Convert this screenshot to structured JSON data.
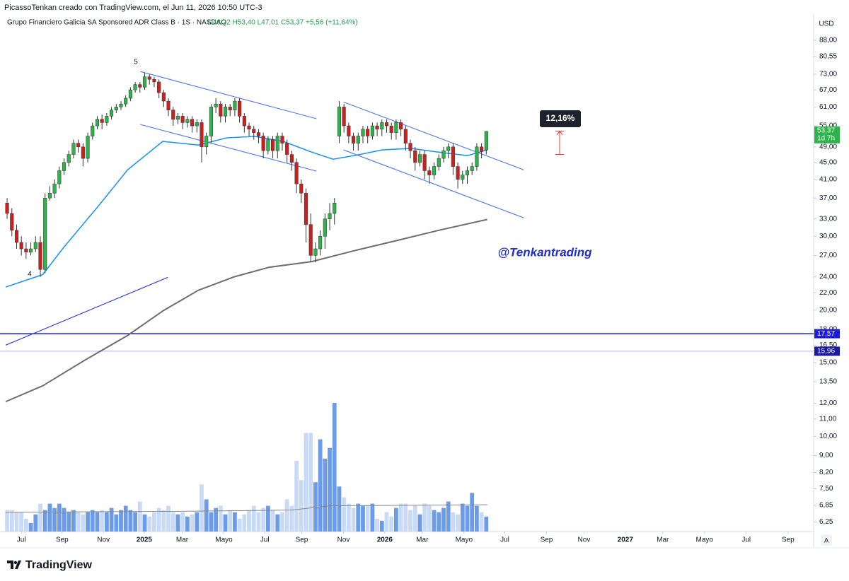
{
  "header": {
    "caption": "PicassoTenkan creado con TradingView.com, el Jun 11, 2026 10:50 UTC-3",
    "symbol": "Grupo Financiero Galicia SA Sponsored ADR Class B · 1S · NASDAQ",
    "ohlc": "O48,22 H53,40 L47,01 C53,37 +5,56 (+11,64%)"
  },
  "chart_data": {
    "type": "candlestick",
    "currency": "USD",
    "log_scale": true,
    "grid": false,
    "xlim": [
      -1.5,
      170
    ],
    "ylim": [
      6,
      100
    ],
    "yticks": [
      {
        "value": 88,
        "label": "88,00"
      },
      {
        "value": 80.55,
        "label": "80,55"
      },
      {
        "value": 73,
        "label": "73,00"
      },
      {
        "value": 67,
        "label": "67,00"
      },
      {
        "value": 61,
        "label": "61,00"
      },
      {
        "value": 55,
        "label": "55,00"
      },
      {
        "value": 49,
        "label": "49,00"
      },
      {
        "value": 45,
        "label": "45,00"
      },
      {
        "value": 41,
        "label": "41,00"
      },
      {
        "value": 37,
        "label": "37,00"
      },
      {
        "value": 33,
        "label": "33,00"
      },
      {
        "value": 30,
        "label": "30,00"
      },
      {
        "value": 27,
        "label": "27,00"
      },
      {
        "value": 24,
        "label": "24,00"
      },
      {
        "value": 22,
        "label": "22,00"
      },
      {
        "value": 20,
        "label": "20,00"
      },
      {
        "value": 18,
        "label": "18,00"
      },
      {
        "value": 16.5,
        "label": "16,50"
      },
      {
        "value": 15,
        "label": "15,00"
      },
      {
        "value": 13.5,
        "label": "13,50"
      },
      {
        "value": 12,
        "label": "12,00"
      },
      {
        "value": 11,
        "label": "11,00"
      },
      {
        "value": 10,
        "label": "10,00"
      },
      {
        "value": 9,
        "label": "9,00"
      },
      {
        "value": 8.2,
        "label": "8,20"
      },
      {
        "value": 7.5,
        "label": "7,50"
      },
      {
        "value": 6.85,
        "label": "6,85"
      },
      {
        "value": 6.25,
        "label": "6,25"
      }
    ],
    "xticks": [
      {
        "value": 3.0,
        "label": "Jul"
      },
      {
        "value": 11.6,
        "label": "Sep"
      },
      {
        "value": 20.3,
        "label": "Nov"
      },
      {
        "value": 28.9,
        "label": "2025"
      },
      {
        "value": 36.9,
        "label": "Mar"
      },
      {
        "value": 45.7,
        "label": "Mayo"
      },
      {
        "value": 54.3,
        "label": "Jul"
      },
      {
        "value": 62.1,
        "label": "Sep"
      },
      {
        "value": 70.9,
        "label": "Nov"
      },
      {
        "value": 79.6,
        "label": "2026"
      },
      {
        "value": 87.5,
        "label": "Mar"
      },
      {
        "value": 96.3,
        "label": "Mayo"
      },
      {
        "value": 104.9,
        "label": "Jul"
      },
      {
        "value": 113.7,
        "label": "Sep"
      },
      {
        "value": 121.6,
        "label": "Nov"
      },
      {
        "value": 130.3,
        "label": "2027"
      },
      {
        "value": 138.2,
        "label": "Mar"
      },
      {
        "value": 147.0,
        "label": "Mayo"
      },
      {
        "value": 155.8,
        "label": "Jul"
      },
      {
        "value": 164.6,
        "label": "Sep"
      }
    ],
    "candles": {
      "up_color": "#2db34a",
      "down_color": "#cc1f1f",
      "open": [
        36,
        34,
        31,
        29,
        28,
        27.5,
        28,
        29,
        25,
        37,
        38,
        40,
        43,
        45,
        47,
        50,
        49,
        46,
        52,
        55,
        57,
        56,
        58,
        60,
        61,
        62,
        64,
        67,
        69,
        68,
        72,
        71,
        70,
        66,
        63,
        60,
        57,
        58,
        56,
        57,
        55,
        56,
        49,
        52,
        61,
        62,
        58,
        61,
        60,
        63,
        58,
        55,
        54,
        53,
        52,
        48,
        51,
        48,
        52,
        50,
        47,
        45,
        40,
        38,
        32,
        27,
        28,
        30,
        33,
        34,
        52,
        61,
        55,
        52,
        50,
        52,
        54,
        52,
        55,
        54,
        56,
        55,
        53,
        56,
        54,
        50,
        48,
        45,
        47,
        43,
        42,
        44,
        46,
        48,
        49,
        44,
        41,
        42,
        43,
        44,
        49,
        48.22
      ],
      "high": [
        37,
        35,
        32,
        30,
        29,
        29,
        30,
        30,
        38,
        39.5,
        41,
        44,
        46,
        48,
        51,
        51,
        50,
        53,
        56,
        58,
        58.5,
        59,
        61,
        62,
        63,
        65,
        68,
        70,
        70,
        73.5,
        73,
        72,
        71,
        67,
        64,
        61,
        59,
        59,
        58,
        58,
        57,
        57,
        53,
        62,
        64,
        63,
        62,
        62,
        64,
        64,
        59,
        56,
        55,
        54,
        53,
        52,
        52,
        53,
        53,
        51,
        48,
        46,
        41,
        39,
        34,
        29,
        31,
        34,
        36,
        37,
        63,
        62,
        56,
        53,
        53,
        55,
        55,
        56,
        56,
        57,
        57,
        56,
        57,
        57,
        55,
        51,
        49,
        48,
        48,
        44,
        45,
        47,
        49,
        50,
        50,
        45,
        43,
        44,
        45,
        50,
        50,
        53.4
      ],
      "low": [
        33,
        30,
        28,
        27,
        26.5,
        27,
        27.5,
        24,
        24.5,
        36.5,
        37,
        39,
        42,
        44,
        46,
        47.5,
        44,
        45,
        51,
        54,
        54,
        55,
        57,
        59,
        60,
        61,
        63,
        66,
        66,
        67,
        69,
        68,
        64,
        61,
        58,
        55,
        55.5,
        54,
        54.5,
        53,
        53,
        45,
        47,
        50,
        59,
        56,
        56,
        58,
        58,
        56,
        53,
        52,
        51,
        50,
        46,
        47,
        46,
        46,
        48,
        45,
        43,
        38,
        36,
        29,
        26,
        26,
        27,
        28,
        31,
        32,
        50,
        53,
        50,
        48,
        48,
        50,
        50,
        51,
        52,
        52,
        53,
        51,
        51,
        52,
        48,
        46,
        43,
        44,
        41,
        40,
        41,
        43,
        45,
        46,
        42,
        39,
        40,
        40,
        42,
        43,
        46,
        47.01
      ],
      "close": [
        34,
        31,
        29,
        28,
        27.5,
        28,
        29,
        25,
        37,
        38,
        40,
        43,
        45,
        47,
        50,
        49,
        46,
        52,
        55,
        57,
        56,
        58,
        60,
        61,
        62,
        64,
        67,
        69,
        68,
        72,
        71,
        70,
        66,
        63,
        60,
        57,
        58,
        56,
        57,
        55,
        56,
        49,
        52,
        61,
        62,
        58,
        61,
        60,
        63,
        58,
        55,
        54,
        53,
        52,
        48,
        51,
        48,
        52,
        50,
        47,
        45,
        40,
        38,
        32,
        27,
        28,
        30,
        33,
        34,
        36,
        61,
        55,
        52,
        50,
        52,
        54,
        52,
        55,
        54,
        56,
        55,
        53,
        56,
        54,
        50,
        48,
        45,
        47,
        43,
        42,
        44,
        46,
        48,
        49,
        44,
        41,
        42,
        43,
        44,
        49,
        47.81,
        53.37
      ]
    },
    "volume": {
      "up_color": "#6c9be8",
      "down_color": "#c9daf6",
      "values": [
        1.0,
        1.0,
        0.9,
        0.9,
        0.6,
        0.4,
        0.8,
        1.3,
        1.0,
        1.3,
        1.1,
        1.3,
        1.1,
        0.9,
        1.0,
        0.9,
        0.8,
        0.9,
        1.0,
        0.9,
        1.0,
        0.9,
        1.1,
        0.8,
        1.0,
        1.2,
        1.0,
        0.9,
        1.4,
        0.8,
        0.7,
        0.9,
        1.1,
        1.0,
        1.2,
        0.9,
        0.8,
        0.9,
        0.7,
        0.8,
        0.9,
        2.2,
        1.5,
        0.9,
        1.1,
        1.2,
        0.8,
        1.0,
        0.9,
        0.6,
        0.8,
        1.0,
        1.2,
        0.9,
        1.1,
        1.2,
        1.0,
        0.8,
        0.9,
        1.5,
        1.2,
        3.3,
        2.4,
        4.6,
        4.6,
        2.3,
        4.3,
        3.4,
        3.9,
        6.0,
        2.1,
        1.6,
        1.3,
        1.1,
        1.3,
        1.2,
        1.2,
        1.3,
        0.6,
        0.5,
        0.9,
        0.7,
        1.1,
        1.3,
        1.3,
        1.0,
        1.2,
        0.8,
        1.3,
        1.2,
        1.0,
        0.9,
        1.1,
        1.4,
        0.9,
        0.8,
        1.3,
        1.2,
        1.8,
        1.2,
        0.9,
        0.7
      ]
    },
    "volume_ma": {
      "color": "#888888",
      "x": [
        -0.3,
        40,
        60,
        68,
        101.2
      ],
      "values": [
        0.9,
        0.95,
        1.0,
        1.2,
        1.25
      ]
    },
    "overlays": [
      {
        "color": "#2196f3",
        "x": [
          -0.3,
          7.5,
          11.9,
          19.4,
          25.4,
          32.8,
          40.3,
          46.3,
          52.2,
          58.2,
          64.2,
          68.7,
          73.1,
          79.1,
          85.1,
          91.0,
          97.0,
          101.2
        ],
        "values": [
          22.7,
          24.3,
          28.2,
          35.6,
          43.2,
          50.5,
          49.5,
          51.5,
          51.9,
          50.5,
          47.6,
          45.8,
          46.7,
          48.2,
          48.6,
          47.6,
          46.7,
          48.2
        ]
      },
      {
        "color": "#6e6e6e",
        "x": [
          -0.3,
          7.5,
          16.4,
          25.4,
          32.8,
          40.3,
          47.8,
          55.2,
          64.2,
          73.1,
          82.1,
          91.0,
          101.2
        ],
        "values": [
          12.1,
          13.2,
          15.2,
          17.4,
          19.9,
          22.3,
          24.0,
          25.3,
          26.1,
          27.7,
          29.3,
          31.0,
          32.9
        ]
      }
    ],
    "trendlines": [
      {
        "color": "#5b7ff0",
        "x": [
          28.1,
          65.2
        ],
        "values": [
          74.1,
          57.2
        ]
      },
      {
        "color": "#5b7ff0",
        "x": [
          28.1,
          65.2
        ],
        "values": [
          55.4,
          42.9
        ]
      },
      {
        "color": "#5b7ff0",
        "x": [
          70.9,
          108.9
        ],
        "values": [
          62.7,
          43.2
        ]
      },
      {
        "color": "#5b7ff0",
        "x": [
          70.9,
          108.9
        ],
        "values": [
          48.2,
          33.2
        ]
      },
      {
        "color": "#3344cc",
        "x": [
          -0.3,
          33.9
        ],
        "values": [
          16.5,
          23.95
        ]
      }
    ],
    "hlines": [
      {
        "value": 17.57,
        "color": "#1c1cd8"
      },
      {
        "value": 15.96,
        "color": "#c8ccf0"
      }
    ],
    "price_labels": [
      {
        "value": 53.37,
        "label": "53,37",
        "sub": "1d 7h",
        "color": "#2db34a"
      },
      {
        "value": 17.57,
        "label": "17,57",
        "color": "#1c1cd8"
      },
      {
        "value": 15.96,
        "label": "15,96",
        "color": "#1a1aa0"
      }
    ],
    "annotations": {
      "wave5": "5",
      "wave4": "4",
      "signature": "@Tenkantrading"
    },
    "measure": {
      "label": "12,16%",
      "color": "#e53935"
    }
  },
  "footer": {
    "brand": "TradingView",
    "auto": "A"
  }
}
